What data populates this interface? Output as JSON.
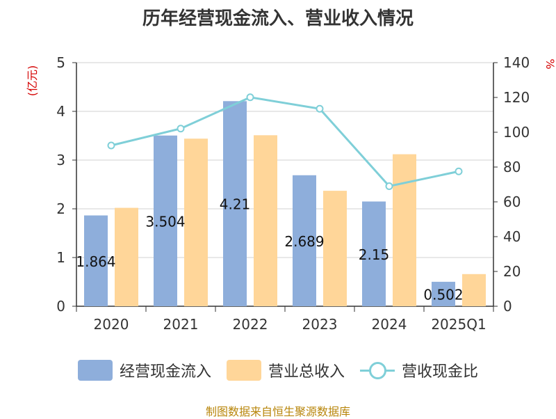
{
  "chart_data": {
    "type": "bar",
    "title": "历年经营现金流入、营业收入情况",
    "categories": [
      "2020",
      "2021",
      "2022",
      "2023",
      "2024",
      "2025Q1"
    ],
    "series": [
      {
        "name": "经营现金流入",
        "type": "bar",
        "axis": "left",
        "values": [
          1.864,
          3.504,
          4.21,
          2.689,
          2.15,
          0.502
        ],
        "labels": [
          "1.864",
          "3.504",
          "4.21",
          "2.689",
          "2.15",
          "0.502"
        ],
        "color": "#8eaedb"
      },
      {
        "name": "营业总收入",
        "type": "bar",
        "axis": "left",
        "values": [
          2.02,
          3.44,
          3.51,
          2.37,
          3.12,
          0.66
        ],
        "color": "#ffd699"
      },
      {
        "name": "营收现金比",
        "type": "line",
        "axis": "right",
        "values": [
          92.4,
          102.1,
          120.1,
          113.5,
          69.0,
          77.5
        ],
        "color": "#7fcfd8"
      }
    ],
    "ylabel_left": "(亿元)",
    "ylabel_right": "%",
    "ylim_left": [
      0,
      5
    ],
    "ylim_right": [
      0,
      140
    ],
    "yticks_left": [
      "0",
      "1",
      "2",
      "3",
      "4",
      "5"
    ],
    "yticks_right": [
      "0",
      "20",
      "40",
      "60",
      "80",
      "100",
      "120",
      "140"
    ],
    "grid": true,
    "legend": "bottom-center"
  },
  "source_text": "制图数据来自恒生聚源数据库"
}
